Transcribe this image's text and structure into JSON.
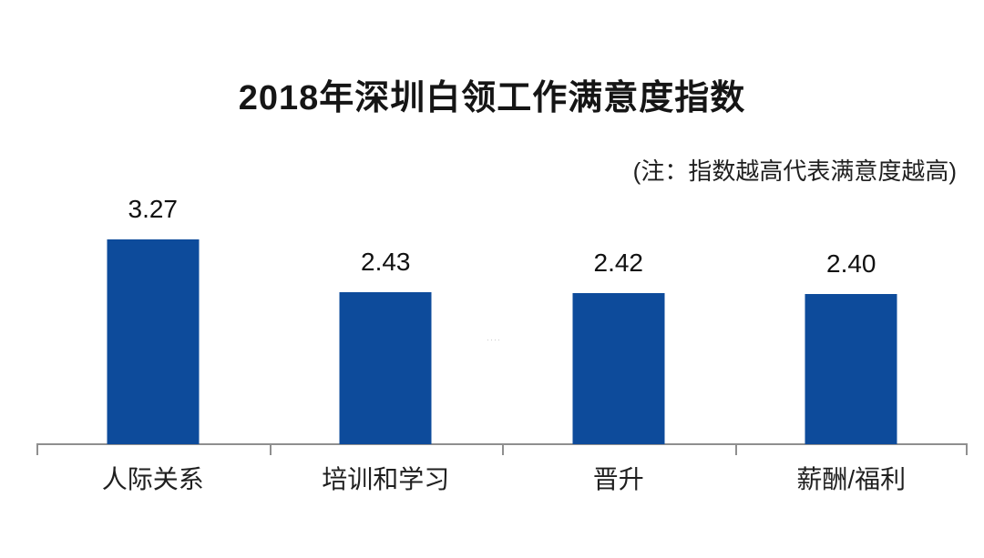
{
  "title": "2018年深圳白领工作满意度指数",
  "note": "(注：指数越高代表满意度越高)",
  "watermark": "····",
  "colors": {
    "bar": "#0d4b9b",
    "axis": "#8f8f8f",
    "text": "#1a1a1a"
  },
  "chart_data": {
    "type": "bar",
    "title": "2018年深圳白领工作满意度指数",
    "subtitle": "(注：指数越高代表满意度越高)",
    "categories": [
      "人际关系",
      "培训和学习",
      "晋升",
      "薪酬/福利"
    ],
    "values": [
      3.27,
      2.43,
      2.42,
      2.4
    ],
    "value_labels": [
      "3.27",
      "2.43",
      "2.42",
      "2.40"
    ],
    "xlabel": "",
    "ylabel": "",
    "ylim": [
      0,
      3.6
    ],
    "grid": false,
    "legend": "none",
    "bar_color": "#0d4b9b",
    "axis_color": "#8f8f8f"
  }
}
